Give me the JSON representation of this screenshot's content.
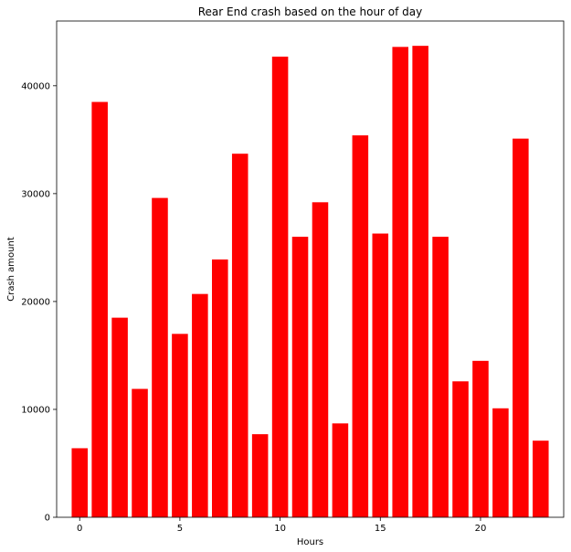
{
  "chart_data": {
    "type": "bar",
    "title": "Rear End crash based on the hour of day",
    "xlabel": "Hours",
    "ylabel": "Crash amount",
    "bar_color": "#ff0000",
    "categories": [
      0,
      1,
      2,
      3,
      4,
      5,
      6,
      7,
      8,
      9,
      10,
      11,
      12,
      13,
      14,
      15,
      16,
      17,
      18,
      19,
      20,
      21,
      22,
      23
    ],
    "values": [
      6400,
      38500,
      18500,
      11900,
      29600,
      17000,
      20700,
      23900,
      33700,
      7700,
      42700,
      26000,
      29200,
      8700,
      35400,
      26300,
      43600,
      43700,
      26000,
      12600,
      14500,
      10100,
      35100,
      7100
    ],
    "xlim": [
      -1.15,
      24.15
    ],
    "ylim": [
      0,
      46000
    ],
    "xticks": [
      0,
      5,
      10,
      15,
      20
    ],
    "xtick_labels": [
      "0",
      "5",
      "10",
      "15",
      "20"
    ],
    "yticks": [
      0,
      10000,
      20000,
      30000,
      40000
    ],
    "ytick_labels": [
      "0",
      "10000",
      "20000",
      "30000",
      "40000"
    ],
    "grid": false
  }
}
